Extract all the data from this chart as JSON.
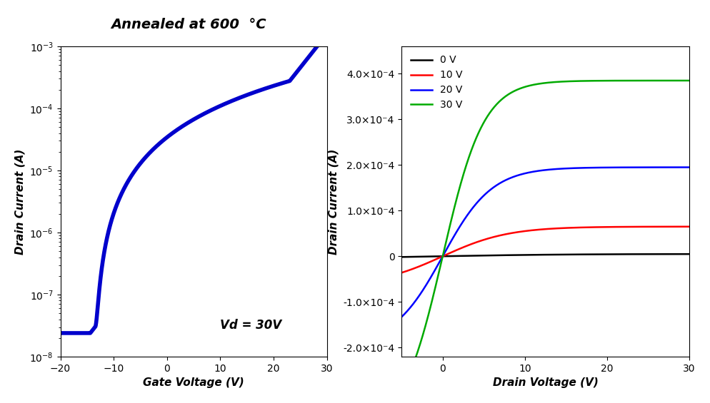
{
  "title": "Annealed at 600  °C",
  "left_plot": {
    "xlabel": "Gate Voltage (V)",
    "ylabel": "Drain Current (A)",
    "annotation": "Vd = 30V",
    "xlim": [
      -20,
      30
    ],
    "ylim": [
      1e-08,
      0.001
    ],
    "xticks": [
      -20,
      -10,
      0,
      10,
      20,
      30
    ],
    "line_color": "#0000CC",
    "line_width": 4.0
  },
  "right_plot": {
    "xlabel": "Drain Voltage (V)",
    "ylabel": "Drain Current (A)",
    "xlim": [
      -5,
      30
    ],
    "ylim": [
      -0.00022,
      0.00046
    ],
    "xticks": [
      0,
      10,
      20,
      30
    ],
    "yticks": [
      -0.0002,
      -0.0001,
      0.0,
      0.0001,
      0.0002,
      0.0003,
      0.0004
    ],
    "curves": [
      {
        "label": "0 V",
        "color": "#000000",
        "Vg": 0,
        "Idsat": 5e-06,
        "Vdsat": 15.0,
        "line_width": 1.8
      },
      {
        "label": "10 V",
        "color": "#FF0000",
        "Vg": 10,
        "Idsat": 6.5e-05,
        "Vdsat": 8.0,
        "line_width": 1.8
      },
      {
        "label": "20 V",
        "color": "#0000FF",
        "Vg": 20,
        "Idsat": 0.000195,
        "Vdsat": 6.0,
        "line_width": 1.8
      },
      {
        "label": "30 V",
        "color": "#00AA00",
        "Vg": 30,
        "Idsat": 0.000385,
        "Vdsat": 5.0,
        "line_width": 1.8
      }
    ]
  }
}
